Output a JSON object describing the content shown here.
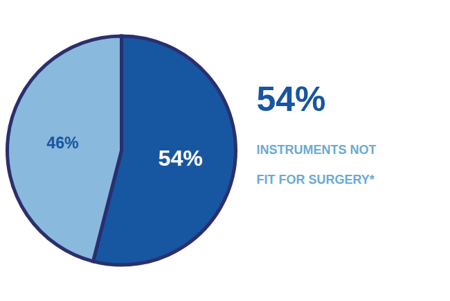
{
  "chart_data": {
    "type": "pie",
    "values": [
      54,
      46
    ],
    "colors": [
      "#1756a0",
      "#8ab9de"
    ],
    "data_labels": true,
    "value_labels": [
      "54%",
      "46%"
    ],
    "annotations": [
      "54%",
      "INSTRUMENTS NOT",
      "FIT FOR SURGERY*"
    ]
  }
}
